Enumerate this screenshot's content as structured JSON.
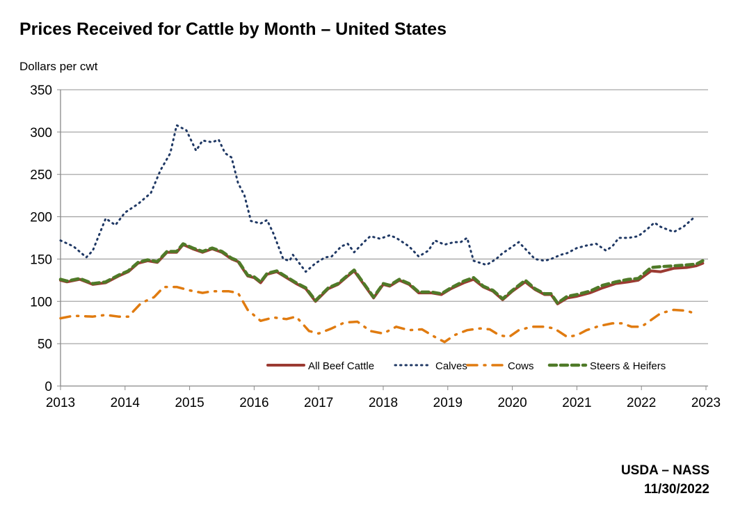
{
  "chart_data": {
    "type": "line",
    "title": "Prices Received for Cattle by Month – United States",
    "ylabel": "Dollars per cwt",
    "xlabel": "",
    "xlim": [
      2013,
      2023
    ],
    "ylim": [
      0,
      350
    ],
    "yticks": [
      0,
      50,
      100,
      150,
      200,
      250,
      300,
      350
    ],
    "xticks": [
      2013,
      2014,
      2015,
      2016,
      2017,
      2018,
      2019,
      2020,
      2021,
      2022,
      2023
    ],
    "grid": "horizontal",
    "legend_position": "bottom-right",
    "series": [
      {
        "name": "All Beef Cattle",
        "color": "#9b3a32",
        "style": "solid",
        "x": [
          2013.0,
          2013.1,
          2013.3,
          2013.5,
          2013.7,
          2013.9,
          2014.05,
          2014.2,
          2014.35,
          2014.5,
          2014.65,
          2014.8,
          2014.9,
          2015.05,
          2015.2,
          2015.35,
          2015.5,
          2015.65,
          2015.75,
          2015.9,
          2016.0,
          2016.1,
          2016.2,
          2016.35,
          2016.5,
          2016.65,
          2016.8,
          2016.95,
          2017.15,
          2017.3,
          2017.45,
          2017.55,
          2017.7,
          2017.85,
          2018.0,
          2018.1,
          2018.25,
          2018.4,
          2018.55,
          2018.75,
          2018.9,
          2019.05,
          2019.25,
          2019.4,
          2019.55,
          2019.7,
          2019.85,
          2020.0,
          2020.2,
          2020.35,
          2020.5,
          2020.6,
          2020.7,
          2020.85,
          2021.0,
          2021.2,
          2021.4,
          2021.6,
          2021.8,
          2021.95,
          2022.15,
          2022.3,
          2022.5,
          2022.7,
          2022.85,
          2022.95
        ],
        "y": [
          125,
          123,
          126,
          120,
          122,
          130,
          135,
          145,
          148,
          146,
          158,
          158,
          167,
          162,
          158,
          162,
          158,
          150,
          147,
          130,
          128,
          122,
          132,
          135,
          128,
          121,
          115,
          100,
          115,
          120,
          130,
          136,
          120,
          104,
          120,
          118,
          125,
          120,
          110,
          110,
          108,
          115,
          122,
          126,
          117,
          112,
          102,
          112,
          123,
          114,
          108,
          108,
          97,
          104,
          106,
          110,
          116,
          121,
          123,
          125,
          136,
          135,
          139,
          140,
          142,
          145
        ]
      },
      {
        "name": "Calves",
        "color": "#1f3864",
        "style": "dotted",
        "x": [
          2013.0,
          2013.2,
          2013.4,
          2013.5,
          2013.7,
          2013.85,
          2014.0,
          2014.2,
          2014.4,
          2014.55,
          2014.7,
          2014.8,
          2014.95,
          2015.1,
          2015.2,
          2015.35,
          2015.45,
          2015.55,
          2015.65,
          2015.75,
          2015.85,
          2015.95,
          2016.1,
          2016.2,
          2016.3,
          2016.45,
          2016.55,
          2016.6,
          2016.7,
          2016.8,
          2016.95,
          2017.1,
          2017.2,
          2017.35,
          2017.45,
          2017.55,
          2017.7,
          2017.8,
          2017.95,
          2018.1,
          2018.2,
          2018.4,
          2018.55,
          2018.7,
          2018.8,
          2018.95,
          2019.1,
          2019.2,
          2019.3,
          2019.4,
          2019.6,
          2019.75,
          2019.85,
          2019.95,
          2020.1,
          2020.2,
          2020.35,
          2020.5,
          2020.6,
          2020.75,
          2020.85,
          2021.0,
          2021.15,
          2021.3,
          2021.45,
          2021.55,
          2021.65,
          2021.8,
          2021.95,
          2022.1,
          2022.2,
          2022.3,
          2022.5,
          2022.65,
          2022.8
        ],
        "y": [
          172,
          165,
          152,
          160,
          198,
          190,
          205,
          215,
          228,
          255,
          275,
          308,
          302,
          278,
          290,
          288,
          291,
          275,
          270,
          240,
          225,
          195,
          192,
          196,
          180,
          150,
          148,
          155,
          145,
          135,
          145,
          152,
          153,
          165,
          168,
          158,
          170,
          177,
          174,
          178,
          175,
          165,
          153,
          160,
          172,
          167,
          170,
          170,
          175,
          148,
          143,
          150,
          157,
          162,
          170,
          162,
          150,
          148,
          150,
          155,
          157,
          163,
          166,
          168,
          160,
          165,
          175,
          175,
          177,
          186,
          193,
          188,
          182,
          188,
          198
        ]
      },
      {
        "name": "Cows",
        "color": "#e07b10",
        "style": "dash-dot",
        "x": [
          2013.0,
          2013.2,
          2013.5,
          2013.7,
          2013.9,
          2014.05,
          2014.25,
          2014.45,
          2014.6,
          2014.8,
          2015.0,
          2015.2,
          2015.35,
          2015.6,
          2015.75,
          2015.9,
          2016.1,
          2016.3,
          2016.5,
          2016.65,
          2016.85,
          2017.0,
          2017.2,
          2017.4,
          2017.6,
          2017.8,
          2018.0,
          2018.2,
          2018.4,
          2018.6,
          2018.8,
          2018.95,
          2019.1,
          2019.3,
          2019.5,
          2019.65,
          2019.8,
          2019.95,
          2020.1,
          2020.3,
          2020.5,
          2020.65,
          2020.85,
          2021.0,
          2021.15,
          2021.35,
          2021.55,
          2021.7,
          2021.85,
          2022.0,
          2022.15,
          2022.3,
          2022.5,
          2022.7,
          2022.85
        ],
        "y": [
          80,
          83,
          82,
          84,
          82,
          82,
          98,
          105,
          117,
          117,
          113,
          110,
          112,
          112,
          110,
          90,
          77,
          81,
          79,
          82,
          65,
          62,
          68,
          75,
          76,
          65,
          62,
          70,
          66,
          67,
          58,
          52,
          60,
          66,
          68,
          67,
          60,
          58,
          66,
          70,
          70,
          68,
          58,
          60,
          66,
          71,
          74,
          74,
          70,
          70,
          78,
          86,
          90,
          89,
          85
        ]
      },
      {
        "name": "Steers & Heifers",
        "color": "#4f7a28",
        "style": "dashed",
        "x": [
          2013.0,
          2013.1,
          2013.3,
          2013.5,
          2013.7,
          2013.9,
          2014.05,
          2014.2,
          2014.35,
          2014.5,
          2014.65,
          2014.8,
          2014.9,
          2015.05,
          2015.2,
          2015.35,
          2015.5,
          2015.65,
          2015.75,
          2015.9,
          2016.0,
          2016.1,
          2016.2,
          2016.35,
          2016.5,
          2016.65,
          2016.8,
          2016.95,
          2017.15,
          2017.3,
          2017.45,
          2017.55,
          2017.7,
          2017.85,
          2018.0,
          2018.1,
          2018.25,
          2018.4,
          2018.55,
          2018.75,
          2018.9,
          2019.05,
          2019.25,
          2019.4,
          2019.55,
          2019.7,
          2019.85,
          2020.0,
          2020.2,
          2020.35,
          2020.5,
          2020.6,
          2020.7,
          2020.85,
          2021.0,
          2021.2,
          2021.4,
          2021.6,
          2021.8,
          2021.95,
          2022.15,
          2022.3,
          2022.5,
          2022.7,
          2022.85,
          2022.95
        ],
        "y": [
          126,
          124,
          127,
          121,
          123,
          131,
          136,
          146,
          149,
          147,
          159,
          159,
          168,
          163,
          159,
          163,
          159,
          151,
          148,
          131,
          129,
          123,
          133,
          136,
          129,
          122,
          116,
          101,
          116,
          121,
          131,
          137,
          121,
          105,
          121,
          119,
          126,
          121,
          111,
          111,
          109,
          116,
          124,
          128,
          118,
          113,
          103,
          113,
          125,
          115,
          109,
          109,
          98,
          106,
          108,
          112,
          119,
          123,
          126,
          127,
          140,
          141,
          142,
          143,
          144,
          148
        ]
      }
    ]
  },
  "footer": {
    "source": "USDA – NASS",
    "date": "11/30/2022"
  }
}
